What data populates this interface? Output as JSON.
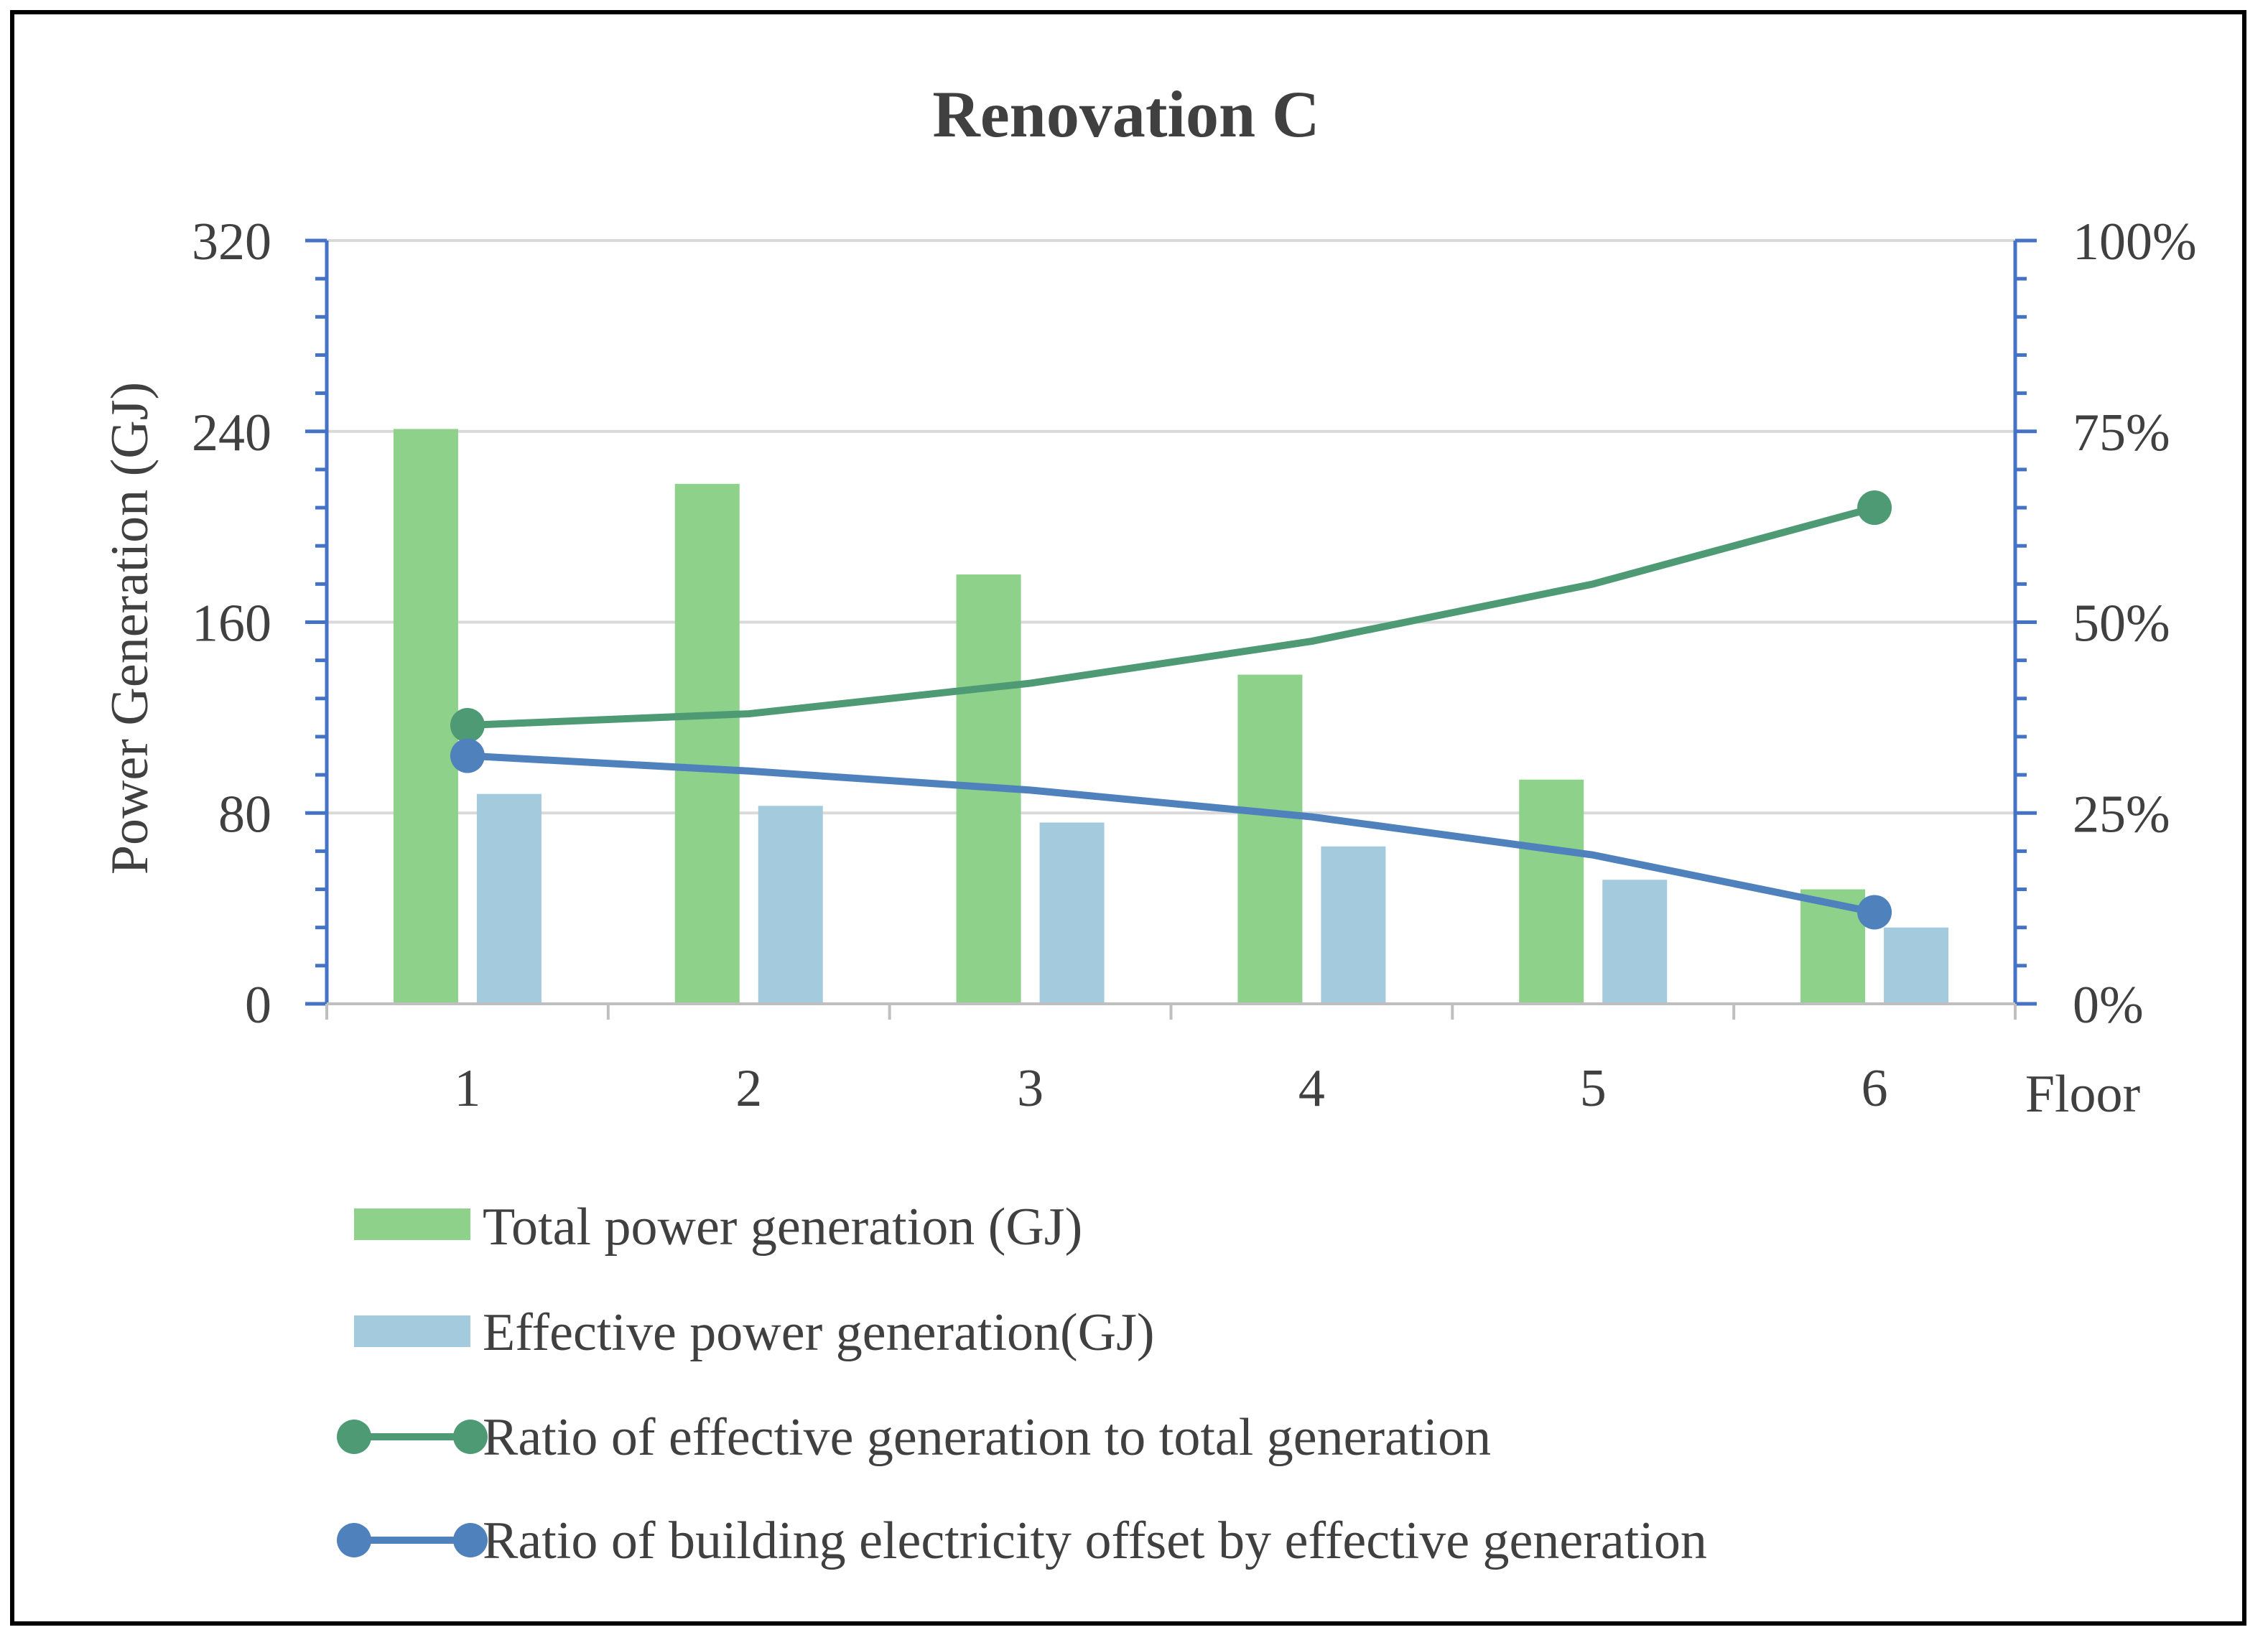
{
  "chart_data": {
    "type": "bar",
    "title": "Renovation C",
    "xlabel": "Floor",
    "ylabel": "Power Generation (GJ)",
    "ylabel_right": "",
    "categories": [
      "1",
      "2",
      "3",
      "4",
      "5",
      "6"
    ],
    "ylim": [
      0,
      320
    ],
    "y_ticks": [
      "0",
      "80",
      "160",
      "240",
      "320"
    ],
    "y2lim": [
      0,
      1
    ],
    "y2_ticks": [
      "0%",
      "25%",
      "50%",
      "75%",
      "100%"
    ],
    "grid": true,
    "legend_position": "bottom",
    "series": [
      {
        "name": "Total power generation (GJ)",
        "type": "bar",
        "axis": "left",
        "color": "#8dd18a",
        "values": [
          241,
          218,
          180,
          138,
          94,
          48
        ]
      },
      {
        "name": "Effective power generation(GJ)",
        "type": "bar",
        "axis": "left",
        "color": "#a4cade",
        "values": [
          88,
          83,
          76,
          66,
          52,
          32
        ]
      },
      {
        "name": "Ratio of effective generation to total generation",
        "type": "line",
        "axis": "right",
        "color": "#4e9a74",
        "values": [
          0.365,
          0.38,
          0.42,
          0.475,
          0.55,
          0.65
        ]
      },
      {
        "name": "Ratio of building electricity offset by effective generation",
        "type": "line",
        "axis": "right",
        "color": "#4f81bd",
        "values": [
          0.325,
          0.305,
          0.28,
          0.245,
          0.195,
          0.12
        ]
      }
    ]
  },
  "colors": {
    "axis": "#4472c4",
    "grid": "#d9d9d9",
    "text": "#404040"
  }
}
